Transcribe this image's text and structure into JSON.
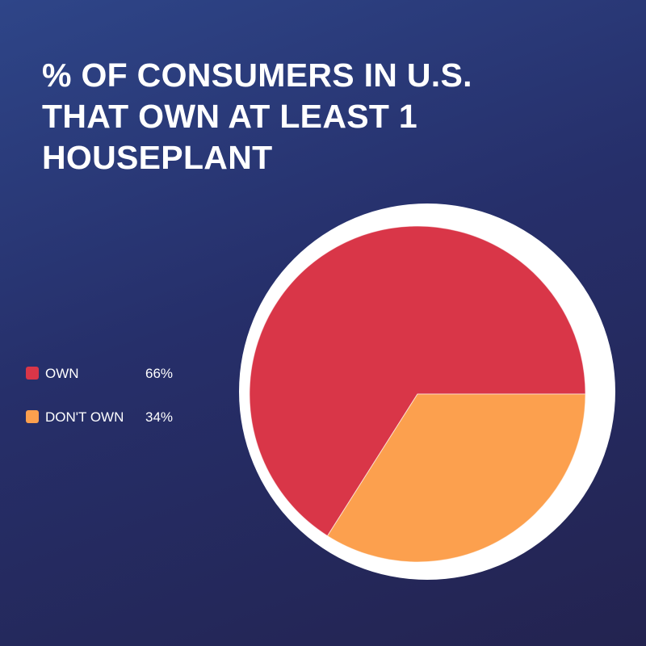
{
  "title": "% OF CONSUMERS IN U.S. THAT OWN AT LEAST 1 HOUSEPLANT",
  "legend": [
    {
      "label": "OWN",
      "value": "66%"
    },
    {
      "label": "DON'T OWN",
      "value": "34%"
    }
  ],
  "chart_data": {
    "type": "pie",
    "title": "% OF CONSUMERS IN U.S. THAT OWN AT LEAST 1 HOUSEPLANT",
    "categories": [
      "OWN",
      "DON'T OWN"
    ],
    "values": [
      66,
      34
    ],
    "colors": [
      "#d93648",
      "#fca04e"
    ],
    "legend": "left"
  },
  "colors": {
    "background_top": "#2e4588",
    "background_bottom": "#232350",
    "title_text": "#ffffff",
    "pie_backdrop": "#ffffff"
  }
}
